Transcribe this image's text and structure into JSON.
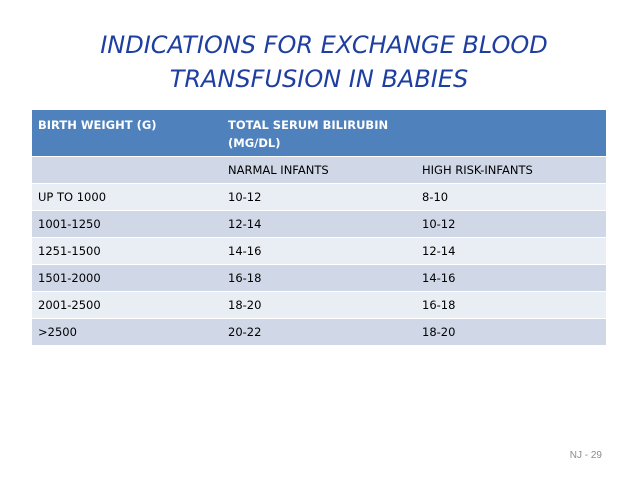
{
  "title": {
    "line1": "INDICATIONS FOR EXCHANGE BLOOD",
    "line2": "TRANSFUSION IN BABIES"
  },
  "table": {
    "header": [
      "BIRTH WEIGHT (G)",
      "TOTAL SERUM BILIRUBIN (MG/DL)",
      ""
    ],
    "subheader": [
      "",
      "NARMAL INFANTS",
      "HIGH RISK-INFANTS"
    ],
    "rows": [
      [
        "UP TO 1000",
        "10-12",
        "8-10"
      ],
      [
        "1001-1250",
        "12-14",
        "10-12"
      ],
      [
        "1251-1500",
        "14-16",
        "12-14"
      ],
      [
        "1501-2000",
        "16-18",
        "14-16"
      ],
      [
        "2001-2500",
        "18-20",
        "16-18"
      ],
      [
        ">2500",
        "20-22",
        "18-20"
      ]
    ]
  },
  "footer": {
    "page_label": "NJ - 29"
  },
  "colors": {
    "title": "#1f3fa0",
    "header_bg": "#4f81bd",
    "band_dark": "#d0d8e8",
    "band_light": "#e9edf4"
  }
}
